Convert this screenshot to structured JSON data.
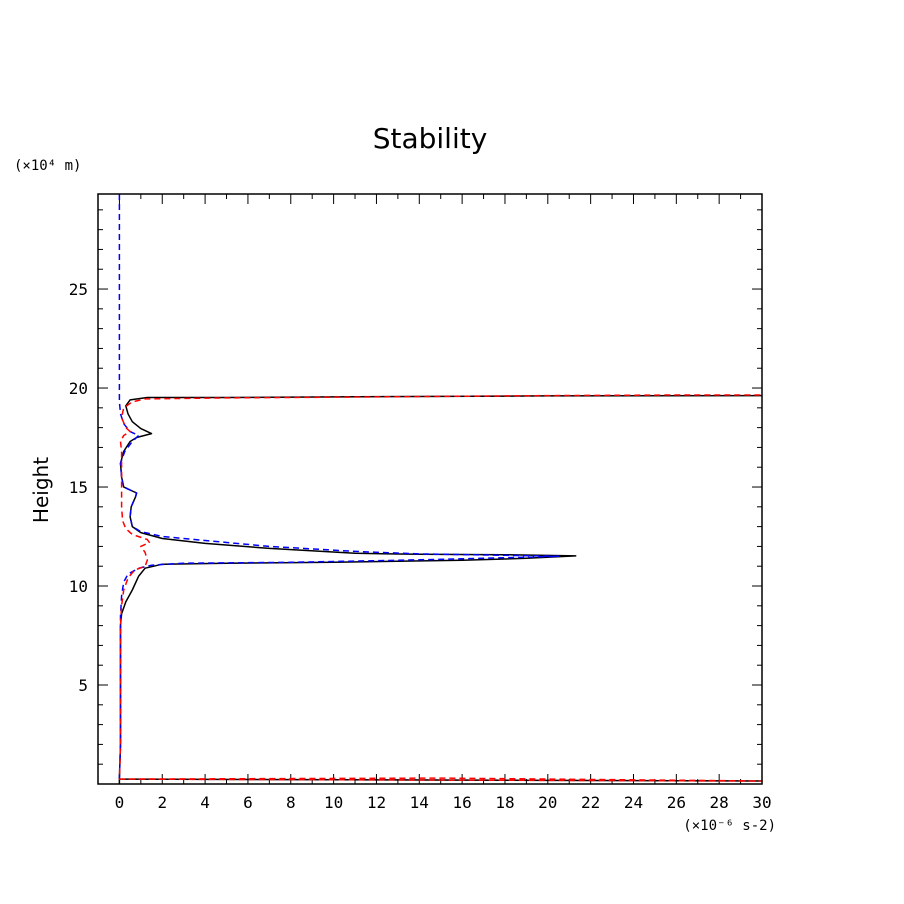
{
  "chart_data": {
    "type": "line",
    "title": "Stability",
    "xlabel": "",
    "ylabel": "Height",
    "x_unit_label": "(×10⁻⁶ s-2)",
    "y_unit_label": "(×10⁴ m)",
    "xlim": [
      -1,
      30
    ],
    "ylim": [
      0,
      29.8
    ],
    "x_ticks": [
      0,
      2,
      4,
      6,
      8,
      10,
      12,
      14,
      16,
      18,
      20,
      22,
      24,
      26,
      28,
      30
    ],
    "y_ticks": [
      5,
      10,
      15,
      20,
      25
    ],
    "grid": false,
    "series": [
      {
        "color": "#000000",
        "dash": "solid",
        "points": [
          [
            0,
            0
          ],
          [
            0,
            0.25
          ],
          [
            15,
            0.2
          ],
          [
            30,
            0.15
          ],
          [
            0,
            0.25
          ],
          [
            0.05,
            2
          ],
          [
            0.05,
            5
          ],
          [
            0.05,
            8
          ],
          [
            0.1,
            8.6
          ],
          [
            0.3,
            9.2
          ],
          [
            0.6,
            9.8
          ],
          [
            0.9,
            10.5
          ],
          [
            1.2,
            10.9
          ],
          [
            2,
            11.1
          ],
          [
            5,
            11.15
          ],
          [
            10,
            11.2
          ],
          [
            16,
            11.3
          ],
          [
            19,
            11.4
          ],
          [
            21.3,
            11.52
          ],
          [
            18,
            11.58
          ],
          [
            14,
            11.6
          ],
          [
            11,
            11.65
          ],
          [
            7,
            11.9
          ],
          [
            4,
            12.15
          ],
          [
            2,
            12.4
          ],
          [
            1,
            12.7
          ],
          [
            0.6,
            13.0
          ],
          [
            0.5,
            13.5
          ],
          [
            0.55,
            14.0
          ],
          [
            0.75,
            14.5
          ],
          [
            0.8,
            14.7
          ],
          [
            0.6,
            14.8
          ],
          [
            0.2,
            15.0
          ],
          [
            0.1,
            15.5
          ],
          [
            0.05,
            16.2
          ],
          [
            0.2,
            16.8
          ],
          [
            0.5,
            17.3
          ],
          [
            0.8,
            17.5
          ],
          [
            1.5,
            17.7
          ],
          [
            1.0,
            17.95
          ],
          [
            0.6,
            18.3
          ],
          [
            0.4,
            18.7
          ],
          [
            0.3,
            19.1
          ],
          [
            0.5,
            19.4
          ],
          [
            1.3,
            19.52
          ],
          [
            5,
            19.52
          ],
          [
            10,
            19.55
          ],
          [
            20,
            19.6
          ],
          [
            30,
            19.62
          ]
        ]
      },
      {
        "color": "#0000ff",
        "dash": "dashed",
        "points": [
          [
            0,
            29.8
          ],
          [
            0,
            25
          ],
          [
            0,
            22
          ],
          [
            0,
            19.3
          ],
          [
            0.05,
            18.7
          ],
          [
            0.2,
            18.2
          ],
          [
            0.5,
            17.8
          ],
          [
            0.9,
            17.6
          ],
          [
            0.6,
            17.3
          ],
          [
            0.25,
            16.8
          ],
          [
            0.05,
            16.2
          ],
          [
            0.1,
            15.5
          ],
          [
            0.2,
            15.0
          ],
          [
            0.6,
            14.8
          ],
          [
            0.8,
            14.7
          ],
          [
            0.75,
            14.5
          ],
          [
            0.55,
            14.0
          ],
          [
            0.5,
            13.5
          ],
          [
            0.6,
            13.0
          ],
          [
            1,
            12.75
          ],
          [
            2,
            12.5
          ],
          [
            4,
            12.3
          ],
          [
            7,
            12.0
          ],
          [
            11,
            11.75
          ],
          [
            14,
            11.62
          ],
          [
            18,
            11.55
          ],
          [
            20.5,
            11.5
          ],
          [
            17,
            11.4
          ],
          [
            13,
            11.3
          ],
          [
            8,
            11.2
          ],
          [
            3,
            11.15
          ],
          [
            1.5,
            11.05
          ],
          [
            0.9,
            10.9
          ],
          [
            0.4,
            10.6
          ],
          [
            0.2,
            10.2
          ],
          [
            0.1,
            9.5
          ],
          [
            0.05,
            8.5
          ],
          [
            0.05,
            5
          ],
          [
            0.05,
            2
          ],
          [
            0,
            0.3
          ]
        ]
      },
      {
        "color": "#ff0000",
        "dash": "dashed",
        "points": [
          [
            0,
            0.25
          ],
          [
            15,
            0.3
          ],
          [
            30,
            0.15
          ],
          [
            0,
            0.25
          ],
          [
            0.05,
            2
          ],
          [
            0.05,
            5
          ],
          [
            0.05,
            8
          ],
          [
            0.1,
            9
          ],
          [
            0.2,
            9.8
          ],
          [
            0.4,
            10.4
          ],
          [
            0.7,
            10.8
          ],
          [
            1.2,
            11.0
          ],
          [
            1.3,
            11.3
          ],
          [
            1.2,
            11.7
          ],
          [
            1.0,
            12.0
          ],
          [
            1.4,
            12.2
          ],
          [
            1.3,
            12.35
          ],
          [
            0.6,
            12.6
          ],
          [
            0.3,
            12.9
          ],
          [
            0.15,
            13.3
          ],
          [
            0.1,
            14.0
          ],
          [
            0.1,
            14.6
          ],
          [
            0.1,
            15.5
          ],
          [
            0.1,
            16.2
          ],
          [
            0.1,
            16.8
          ],
          [
            0.05,
            17.3
          ],
          [
            0.2,
            17.6
          ],
          [
            0.5,
            17.8
          ],
          [
            0.3,
            18.0
          ],
          [
            0.1,
            18.5
          ],
          [
            0.2,
            19.0
          ],
          [
            0.6,
            19.3
          ],
          [
            1.2,
            19.45
          ],
          [
            5,
            19.5
          ],
          [
            12,
            19.55
          ],
          [
            20,
            19.62
          ],
          [
            26,
            19.65
          ],
          [
            30,
            19.65
          ]
        ]
      }
    ]
  }
}
